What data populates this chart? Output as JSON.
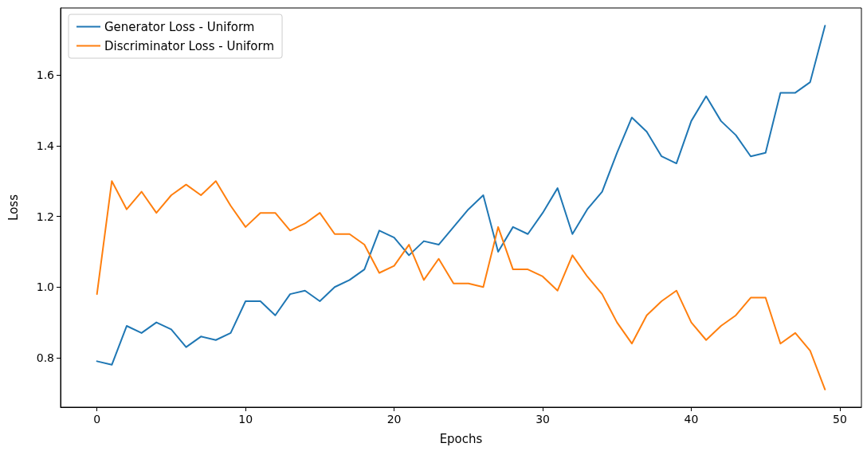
{
  "chart_data": {
    "type": "line",
    "xlabel": "Epochs",
    "ylabel": "Loss",
    "x": [
      0,
      1,
      2,
      3,
      4,
      5,
      6,
      7,
      8,
      9,
      10,
      11,
      12,
      13,
      14,
      15,
      16,
      17,
      18,
      19,
      20,
      21,
      22,
      23,
      24,
      25,
      26,
      27,
      28,
      29,
      30,
      31,
      32,
      33,
      34,
      35,
      36,
      37,
      38,
      39,
      40,
      41,
      42,
      43,
      44,
      45,
      46,
      47,
      48,
      49
    ],
    "series": [
      {
        "name": "Generator Loss - Uniform",
        "color": "#1f77b4",
        "values": [
          0.79,
          0.78,
          0.89,
          0.87,
          0.9,
          0.88,
          0.83,
          0.86,
          0.85,
          0.87,
          0.96,
          0.96,
          0.92,
          0.98,
          0.99,
          0.96,
          1.0,
          1.02,
          1.05,
          1.16,
          1.14,
          1.09,
          1.13,
          1.12,
          1.17,
          1.22,
          1.26,
          1.1,
          1.17,
          1.15,
          1.21,
          1.28,
          1.15,
          1.22,
          1.27,
          1.38,
          1.48,
          1.44,
          1.37,
          1.35,
          1.47,
          1.54,
          1.47,
          1.43,
          1.37,
          1.38,
          1.55,
          1.55,
          1.58,
          1.74
        ]
      },
      {
        "name": "Discriminator Loss - Uniform",
        "color": "#ff7f0e",
        "values": [
          0.98,
          1.3,
          1.22,
          1.27,
          1.21,
          1.26,
          1.29,
          1.26,
          1.3,
          1.23,
          1.17,
          1.21,
          1.21,
          1.16,
          1.18,
          1.21,
          1.15,
          1.15,
          1.12,
          1.04,
          1.06,
          1.12,
          1.02,
          1.08,
          1.01,
          1.01,
          1.0,
          1.17,
          1.05,
          1.05,
          1.03,
          0.99,
          1.09,
          1.03,
          0.98,
          0.9,
          0.84,
          0.92,
          0.96,
          0.99,
          0.9,
          0.85,
          0.89,
          0.92,
          0.97,
          0.97,
          0.84,
          0.87,
          0.82,
          0.71
        ]
      }
    ],
    "xlim": [
      -2.45,
      51.45
    ],
    "xticks": [
      0,
      10,
      20,
      30,
      40,
      50
    ],
    "ylim": [
      0.66,
      1.79
    ],
    "yticks": [
      {
        "value": 0.8,
        "label": "0.8"
      },
      {
        "value": 1.0,
        "label": "1.0"
      },
      {
        "value": 1.2,
        "label": "1.2"
      },
      {
        "value": 1.4,
        "label": "1.4"
      },
      {
        "value": 1.6,
        "label": "1.6"
      }
    ],
    "grid": false,
    "legend": "top left",
    "marker": "none",
    "line_style": "solid"
  }
}
